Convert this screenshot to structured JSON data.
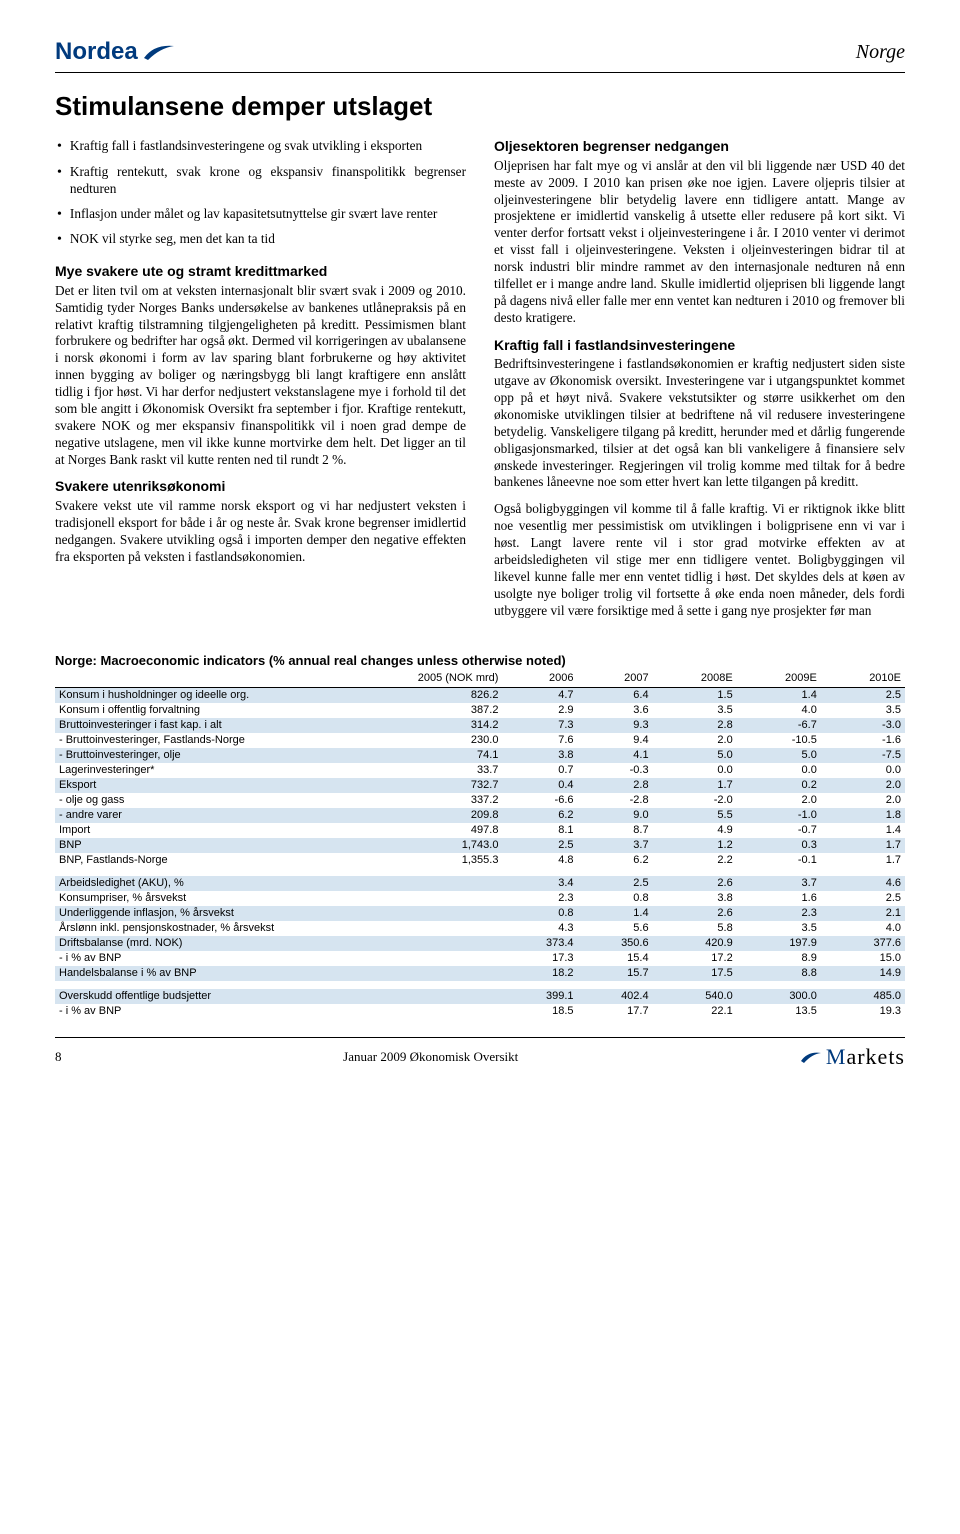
{
  "header": {
    "logo_text": "Nordea",
    "right_label": "Norge",
    "logo_color": "#003a7d"
  },
  "title": "Stimulansene demper utslaget",
  "bullets": [
    "Kraftig fall i fastlandsinvesteringene og svak utvikling i eksporten",
    "Kraftig rentekutt, svak krone og ekspansiv finanspolitikk begrenser nedturen",
    "Inflasjon under målet og lav kapasitetsutnyttelse gir svært lave renter",
    "NOK vil styrke seg, men det kan ta tid"
  ],
  "left": {
    "h1": "Mye svakere ute og stramt kredittmarked",
    "p1": "Det er liten tvil om at veksten internasjonalt blir svært svak i 2009 og 2010. Samtidig tyder Norges Banks undersøkelse av bankenes utlånepraksis på en relativt kraftig tilstramning tilgjengeligheten på kreditt. Pessimismen blant forbrukere og bedrifter har også økt. Dermed vil korrigeringen av ubalansene i norsk økonomi i form av lav sparing blant forbrukerne og høy aktivitet innen bygging av boliger og næringsbygg bli langt kraftigere enn anslått tidlig i fjor høst. Vi har derfor nedjustert vekstanslagene mye i forhold til det som ble angitt i Økonomisk Oversikt fra september i fjor. Kraftige rentekutt, svakere NOK og mer ekspansiv finanspolitikk vil i noen grad dempe de negative utslagene, men vil ikke kunne mortvirke dem helt. Det ligger an til at Norges Bank raskt vil kutte renten ned til rundt 2 %.",
    "h2": "Svakere utenriksøkonomi",
    "p2": "Svakere vekst ute vil ramme norsk eksport og vi har nedjustert veksten i tradisjonell eksport for både i år og neste år. Svak krone begrenser imidlertid nedgangen. Svakere utvikling også i importen demper den negative effekten fra eksporten på veksten i fastlandsøkonomien."
  },
  "right": {
    "h1": "Oljesektoren begrenser nedgangen",
    "p1": "Oljeprisen har falt mye og vi anslår at den vil bli liggende nær USD 40 det meste av 2009. I 2010 kan prisen øke noe igjen. Lavere oljepris tilsier at oljeinvesteringene blir betydelig lavere enn tidligere antatt. Mange av prosjektene er imidlertid vanskelig å utsette eller redusere på kort sikt. Vi venter derfor fortsatt vekst i oljeinvesteringene i år. I 2010 venter vi derimot et visst fall i oljeinvesteringene. Veksten i oljeinvesteringen bidrar til at norsk industri blir mindre rammet av den internasjonale nedturen nå enn tilfellet er i mange andre land. Skulle imidlertid oljeprisen bli liggende langt på dagens nivå eller falle mer enn ventet kan nedturen i 2010 og fremover bli desto kratigere.",
    "h2": "Kraftig fall i fastlandsinvesteringene",
    "p2": "Bedriftsinvesteringene i fastlandsøkonomien er kraftig nedjustert siden siste utgave av Økonomisk oversikt. Investeringene var i utgangspunktet kommet opp på et høyt nivå. Svakere vekstutsikter og større usikkerhet om den økonomiske utviklingen tilsier at bedriftene nå vil redusere investeringene betydelig. Vanskeligere tilgang på kreditt, herunder med et dårlig fungerende obligasjonsmarked, tilsier at det også kan bli vankeligere å finansiere selv ønskede investeringer. Regjeringen vil trolig komme med tiltak for å bedre bankenes låneevne noe som etter hvert kan lette tilgangen på kreditt.",
    "p3": "Også boligbyggingen vil komme til å falle kraftig. Vi er riktignok ikke blitt noe vesentlig mer pessimistisk om utviklingen i boligprisene enn vi var i høst. Langt lavere rente vil i stor grad motvirke effekten av at arbeidsledigheten vil stige mer enn tidligere ventet. Boligbyggingen vil likevel kunne falle mer enn ventet tidlig i høst. Det skyldes dels at køen av usolgte nye boliger trolig vil fortsette å øke enda noen måneder, dels fordi utbyggere vil være forsiktige med å sette i gang nye prosjekter før man"
  },
  "table": {
    "title": "Norge: Macroeconomic indicators (% annual real changes unless otherwise noted)",
    "columns": [
      "",
      "2005 (NOK mrd)",
      "2006",
      "2007",
      "2008E",
      "2009E",
      "2010E"
    ],
    "colors": {
      "alt_bg": "#d6e4f0"
    },
    "rows_block1": [
      [
        "Konsum i husholdninger og ideelle org.",
        "826.2",
        "4.7",
        "6.4",
        "1.5",
        "1.4",
        "2.5"
      ],
      [
        "Konsum i offentlig forvaltning",
        "387.2",
        "2.9",
        "3.6",
        "3.5",
        "4.0",
        "3.5"
      ],
      [
        "Bruttoinvesteringer i fast kap. i alt",
        "314.2",
        "7.3",
        "9.3",
        "2.8",
        "-6.7",
        "-3.0"
      ],
      [
        "- Bruttoinvesteringer, Fastlands-Norge",
        "230.0",
        "7.6",
        "9.4",
        "2.0",
        "-10.5",
        "-1.6"
      ],
      [
        "- Bruttoinvesteringer, olje",
        "74.1",
        "3.8",
        "4.1",
        "5.0",
        "5.0",
        "-7.5"
      ],
      [
        "Lagerinvesteringer*",
        "33.7",
        "0.7",
        "-0.3",
        "0.0",
        "0.0",
        "0.0"
      ],
      [
        "Eksport",
        "732.7",
        "0.4",
        "2.8",
        "1.7",
        "0.2",
        "2.0"
      ],
      [
        "-  olje og gass",
        "337.2",
        "-6.6",
        "-2.8",
        "-2.0",
        "2.0",
        "2.0"
      ],
      [
        "-  andre varer",
        "209.8",
        "6.2",
        "9.0",
        "5.5",
        "-1.0",
        "1.8"
      ],
      [
        "Import",
        "497.8",
        "8.1",
        "8.7",
        "4.9",
        "-0.7",
        "1.4"
      ],
      [
        "BNP",
        "1,743.0",
        "2.5",
        "3.7",
        "1.2",
        "0.3",
        "1.7"
      ],
      [
        "BNP, Fastlands-Norge",
        "1,355.3",
        "4.8",
        "6.2",
        "2.2",
        "-0.1",
        "1.7"
      ]
    ],
    "rows_block2": [
      [
        "Arbeidsledighet (AKU), %",
        "",
        "3.4",
        "2.5",
        "2.6",
        "3.7",
        "4.6"
      ],
      [
        "Konsumpriser, % årsvekst",
        "",
        "2.3",
        "0.8",
        "3.8",
        "1.6",
        "2.5"
      ],
      [
        "Underliggende inflasjon, % årsvekst",
        "",
        "0.8",
        "1.4",
        "2.6",
        "2.3",
        "2.1"
      ],
      [
        "Årslønn inkl. pensjonskostnader, % årsvekst",
        "",
        "4.3",
        "5.6",
        "5.8",
        "3.5",
        "4.0"
      ],
      [
        "Driftsbalanse (mrd. NOK)",
        "",
        "373.4",
        "350.6",
        "420.9",
        "197.9",
        "377.6"
      ],
      [
        "- i % av BNP",
        "",
        "17.3",
        "15.4",
        "17.2",
        "8.9",
        "15.0"
      ],
      [
        "Handelsbalanse i % av BNP",
        "",
        "18.2",
        "15.7",
        "17.5",
        "8.8",
        "14.9"
      ]
    ],
    "rows_block3": [
      [
        "Overskudd offentlige budsjetter",
        "",
        "399.1",
        "402.4",
        "540.0",
        "300.0",
        "485.0"
      ],
      [
        "- i % av BNP",
        "",
        "18.5",
        "17.7",
        "22.1",
        "13.5",
        "19.3"
      ]
    ]
  },
  "footer": {
    "page_number": "8",
    "center": "Januar 2009                      Økonomisk Oversikt",
    "markets": "Markets"
  }
}
